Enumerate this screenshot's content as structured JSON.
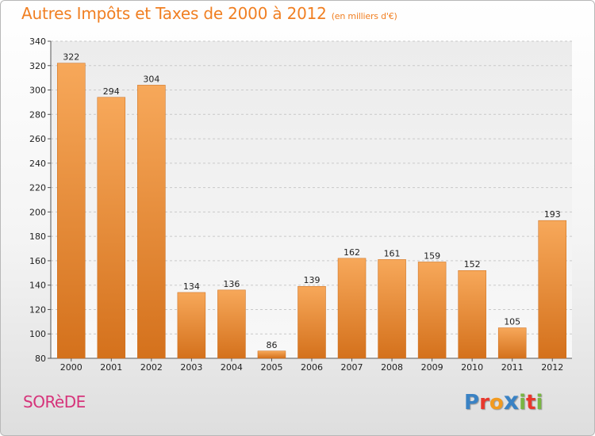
{
  "title": "Autres Impôts et Taxes de 2000 à 2012",
  "subtitle": "(en milliers d'€)",
  "location": "SORèDE",
  "logo": {
    "letters": [
      "P",
      "r",
      "o",
      "x",
      "i",
      "t",
      "i"
    ],
    "colors": [
      "#3a82c4",
      "#e8382d",
      "#f29a1f",
      "#3a82c4",
      "#79b543",
      "#e8382d",
      "#79b543"
    ]
  },
  "colors": {
    "bar_light": "#f7a85a",
    "bar_dark": "#d4711c",
    "title": "#f07f22",
    "location": "#d6337a"
  },
  "chart_data": {
    "type": "bar",
    "categories": [
      "2000",
      "2001",
      "2002",
      "2003",
      "2004",
      "2005",
      "2006",
      "2007",
      "2008",
      "2009",
      "2010",
      "2011",
      "2012"
    ],
    "values": [
      322,
      294,
      304,
      134,
      136,
      86,
      139,
      162,
      161,
      159,
      152,
      105,
      193
    ],
    "title": "Autres Impôts et Taxes de 2000 à 2012",
    "subtitle": "(en milliers d'€)",
    "ylim": [
      80,
      340
    ],
    "yticks": [
      80,
      100,
      120,
      140,
      160,
      180,
      200,
      220,
      240,
      260,
      280,
      300,
      320,
      340
    ],
    "grid": true,
    "data_labels": true
  }
}
